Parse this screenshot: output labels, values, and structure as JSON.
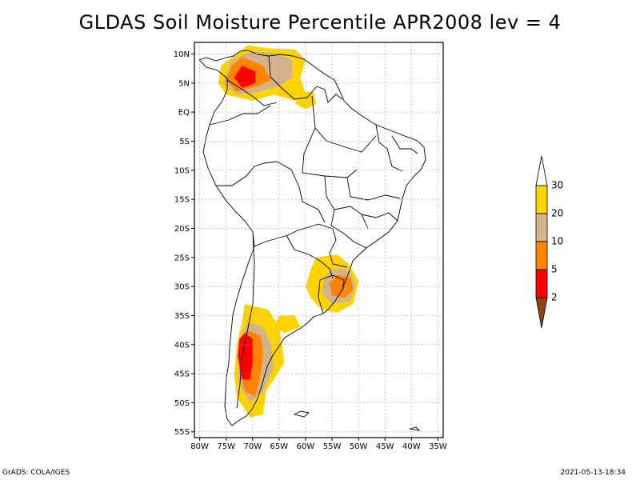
{
  "title": "GLDAS Soil Moisture Percentile APR2008 lev = 4",
  "footer": {
    "left": "GrADS: COLA/IGES",
    "right": "2021-05-13-18:34"
  },
  "chart_data": {
    "type": "heatmap",
    "title": "GLDAS Soil Moisture Percentile APR2008 lev = 4",
    "x_axis": {
      "ticks": [
        "80W",
        "75W",
        "70W",
        "65W",
        "60W",
        "55W",
        "50W",
        "45W",
        "40W",
        "35W"
      ],
      "tick_values": [
        -80,
        -75,
        -70,
        -65,
        -60,
        -55,
        -50,
        -45,
        -40,
        -35
      ],
      "range": [
        -81,
        -34
      ]
    },
    "y_axis": {
      "ticks": [
        "10N",
        "5N",
        "EQ",
        "5S",
        "10S",
        "15S",
        "20S",
        "25S",
        "30S",
        "35S",
        "40S",
        "45S",
        "50S",
        "55S"
      ],
      "tick_values": [
        10,
        5,
        0,
        -5,
        -10,
        -15,
        -20,
        -25,
        -30,
        -35,
        -40,
        -45,
        -50,
        -55
      ],
      "range": [
        -56,
        12
      ]
    },
    "grid": true,
    "legend": {
      "placement": "right",
      "labels": [
        "30",
        "20",
        "10",
        "5",
        "2"
      ],
      "colors": [
        "#fdd400",
        "#d5b38a",
        "#ff8400",
        "#ff0000",
        "#8b4513"
      ],
      "top_color": "#ffffff"
    },
    "regions": [
      {
        "name": "northern-south-america",
        "category": "20-30",
        "color": "#fdd400",
        "polygon": [
          [
            -71,
            11.5
          ],
          [
            -67,
            11
          ],
          [
            -62,
            10.8
          ],
          [
            -60,
            9
          ],
          [
            -61,
            6
          ],
          [
            -60,
            3
          ],
          [
            -62,
            2
          ],
          [
            -66,
            3
          ],
          [
            -70,
            2
          ],
          [
            -75,
            3
          ],
          [
            -76.5,
            5
          ],
          [
            -76,
            8
          ],
          [
            -73,
            10
          ]
        ]
      },
      {
        "name": "northern-south-america",
        "category": "10-20",
        "color": "#d5b38a",
        "polygon": [
          [
            -70,
            10.5
          ],
          [
            -66,
            10.2
          ],
          [
            -62.5,
            9
          ],
          [
            -62.5,
            6
          ],
          [
            -65,
            4.5
          ],
          [
            -69,
            3.5
          ],
          [
            -73,
            3
          ],
          [
            -75.5,
            5
          ],
          [
            -74,
            9
          ]
        ]
      },
      {
        "name": "northern-south-america",
        "category": "5-10",
        "color": "#ff8400",
        "polygon": [
          [
            -72,
            9.5
          ],
          [
            -68,
            8
          ],
          [
            -66.5,
            5.5
          ],
          [
            -69,
            4.5
          ],
          [
            -73,
            3.5
          ],
          [
            -75,
            5.5
          ],
          [
            -74,
            8
          ]
        ]
      },
      {
        "name": "northern-south-america",
        "category": "2-5",
        "color": "#ff0000",
        "polygon": [
          [
            -72,
            8
          ],
          [
            -69.5,
            7
          ],
          [
            -69.5,
            5
          ],
          [
            -72,
            4.2
          ],
          [
            -73.5,
            6
          ]
        ]
      },
      {
        "name": "guyana-patch",
        "category": "20-30",
        "color": "#fdd400",
        "polygon": [
          [
            -61,
            3.5
          ],
          [
            -58.5,
            3.5
          ],
          [
            -58,
            1.5
          ],
          [
            -60,
            0.5
          ],
          [
            -62,
            1.5
          ]
        ]
      },
      {
        "name": "southern-brazil-uruguay",
        "category": "20-30",
        "color": "#fdd400",
        "polygon": [
          [
            -58,
            -25
          ],
          [
            -54,
            -24.5
          ],
          [
            -52,
            -26
          ],
          [
            -50,
            -29
          ],
          [
            -51,
            -33
          ],
          [
            -54,
            -34.5
          ],
          [
            -57,
            -34
          ],
          [
            -59,
            -32
          ],
          [
            -60,
            -30
          ],
          [
            -59,
            -27
          ]
        ]
      },
      {
        "name": "southern-brazil-uruguay",
        "category": "10-20",
        "color": "#d5b38a",
        "polygon": [
          [
            -55,
            -27
          ],
          [
            -52,
            -27
          ],
          [
            -50.5,
            -29.5
          ],
          [
            -51.5,
            -32.5
          ],
          [
            -55,
            -33
          ],
          [
            -57,
            -31
          ],
          [
            -56.5,
            -28.5
          ]
        ]
      },
      {
        "name": "southern-brazil-uruguay",
        "category": "5-10",
        "color": "#ff8400",
        "polygon": [
          [
            -54,
            -28
          ],
          [
            -51.5,
            -28.5
          ],
          [
            -51,
            -30.5
          ],
          [
            -52.5,
            -32
          ],
          [
            -55,
            -31.5
          ],
          [
            -55.5,
            -29.5
          ]
        ]
      },
      {
        "name": "la-pampa-patch",
        "category": "20-30",
        "color": "#fdd400",
        "polygon": [
          [
            -65,
            -35
          ],
          [
            -62,
            -35
          ],
          [
            -61,
            -37
          ],
          [
            -64,
            -38
          ],
          [
            -66,
            -37
          ]
        ]
      },
      {
        "name": "patagonia",
        "category": "20-30",
        "color": "#fdd400",
        "polygon": [
          [
            -71.5,
            -33
          ],
          [
            -67,
            -34
          ],
          [
            -65,
            -37
          ],
          [
            -64.5,
            -40
          ],
          [
            -64,
            -43
          ],
          [
            -66,
            -46
          ],
          [
            -67.5,
            -48
          ],
          [
            -68,
            -52
          ],
          [
            -70.5,
            -52.5
          ],
          [
            -73,
            -49
          ],
          [
            -73.5,
            -45
          ],
          [
            -73,
            -40
          ],
          [
            -72,
            -36
          ]
        ]
      },
      {
        "name": "patagonia",
        "category": "10-20",
        "color": "#d5b38a",
        "polygon": [
          [
            -71,
            -36
          ],
          [
            -68,
            -37
          ],
          [
            -66.5,
            -40
          ],
          [
            -66,
            -44
          ],
          [
            -68,
            -48
          ],
          [
            -70.5,
            -50
          ],
          [
            -72.5,
            -47
          ],
          [
            -73,
            -42
          ],
          [
            -72,
            -38
          ]
        ]
      },
      {
        "name": "patagonia",
        "category": "5-10",
        "color": "#ff8400",
        "polygon": [
          [
            -71,
            -37.5
          ],
          [
            -68.5,
            -38.5
          ],
          [
            -68,
            -41.5
          ],
          [
            -68.5,
            -45
          ],
          [
            -69.5,
            -49
          ],
          [
            -71.5,
            -48
          ],
          [
            -72.5,
            -44
          ],
          [
            -72.5,
            -40
          ]
        ]
      },
      {
        "name": "patagonia",
        "category": "2-5",
        "color": "#ff0000",
        "polygon": [
          [
            -71.5,
            -38
          ],
          [
            -70,
            -39
          ],
          [
            -70,
            -43
          ],
          [
            -70.5,
            -46
          ],
          [
            -72,
            -46
          ],
          [
            -72.8,
            -42
          ],
          [
            -72.5,
            -39
          ]
        ]
      }
    ]
  }
}
